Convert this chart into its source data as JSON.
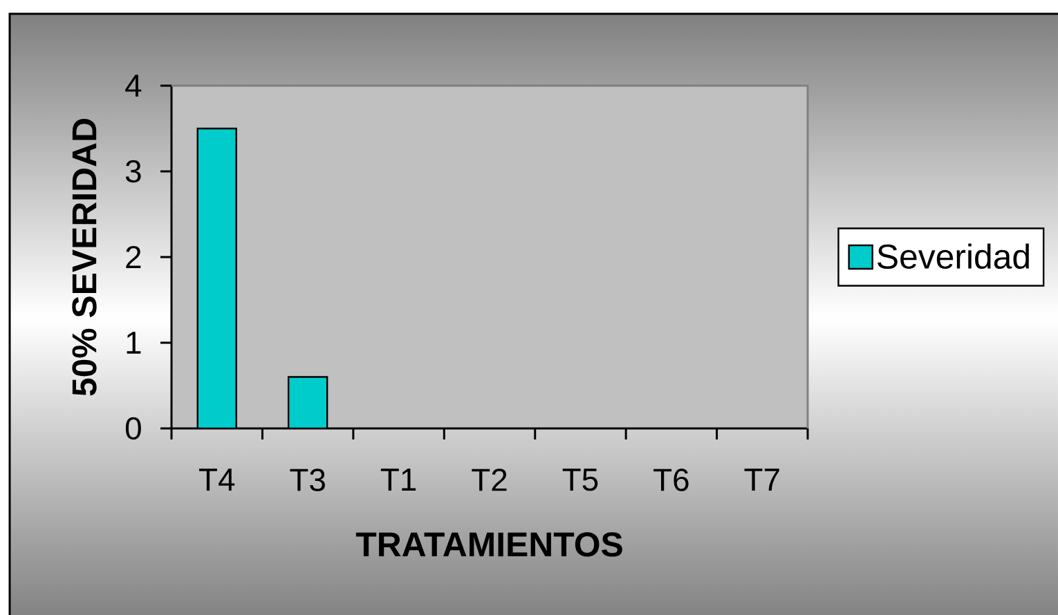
{
  "chart_data": {
    "type": "bar",
    "xlabel": "TRATAMIENTOS",
    "ylabel": "50% SEVERIDAD",
    "categories": [
      "T4",
      "T3",
      "T1",
      "T2",
      "T5",
      "T6",
      "T7"
    ],
    "series": [
      {
        "name": "Severidad",
        "color": "#00cccc",
        "values": [
          3.5,
          0.6,
          0,
          0,
          0,
          0,
          0
        ]
      }
    ],
    "ylim": [
      0,
      4
    ],
    "yticks": [
      0,
      1,
      2,
      3,
      4
    ],
    "legend": "right"
  }
}
